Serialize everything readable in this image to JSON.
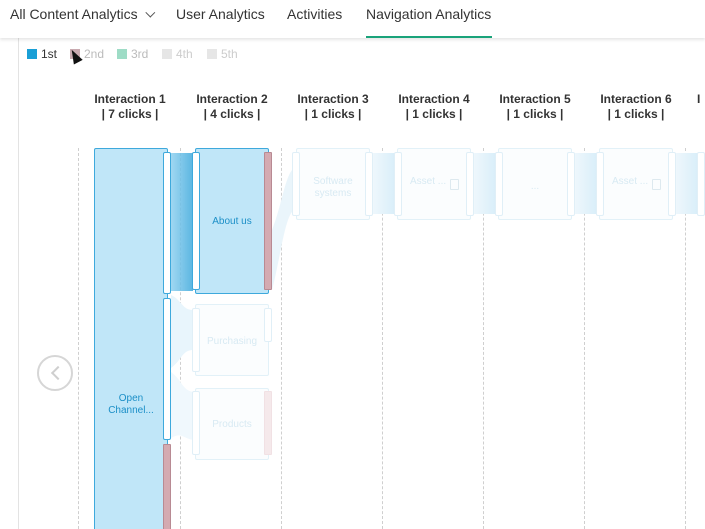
{
  "tabs": [
    {
      "label": "All Content Analytics",
      "dropdown": true,
      "active": false
    },
    {
      "label": "User Analytics",
      "active": false
    },
    {
      "label": "Activities",
      "active": false
    },
    {
      "label": "Navigation Analytics",
      "active": true
    }
  ],
  "legend": [
    {
      "label": "1st",
      "color": "#1a9fd6",
      "active": true
    },
    {
      "label": "2nd",
      "color": "#c9aab0",
      "active": false
    },
    {
      "label": "3rd",
      "color": "#9edcc6",
      "active": false
    },
    {
      "label": "4th",
      "color": "#e6e6e6",
      "active": false
    },
    {
      "label": "5th",
      "color": "#e6e6e6",
      "active": false
    }
  ],
  "columns": [
    {
      "title": "Interaction 1",
      "clicks": "| 7 clicks |"
    },
    {
      "title": "Interaction 2",
      "clicks": "| 4 clicks |"
    },
    {
      "title": "Interaction 3",
      "clicks": "| 1 clicks |"
    },
    {
      "title": "Interaction 4",
      "clicks": "| 1 clicks |"
    },
    {
      "title": "Interaction 5",
      "clicks": "| 1 clicks |"
    },
    {
      "title": "Interaction 6",
      "clicks": "| 1 clicks |"
    },
    {
      "title": "I",
      "clicks": ""
    }
  ],
  "nodes": {
    "open_channel": "Open Channel...",
    "about_us": "About us",
    "purchasing": "Purchasing",
    "products": "Products",
    "software_systems": "Software systems",
    "asset_1": "Asset ...",
    "ellipsis": "...",
    "asset_2": "Asset ..."
  },
  "colors": {
    "accent": "#1aa37a",
    "node_fill": "#c0e6f8",
    "node_border": "#3ea9dc"
  }
}
